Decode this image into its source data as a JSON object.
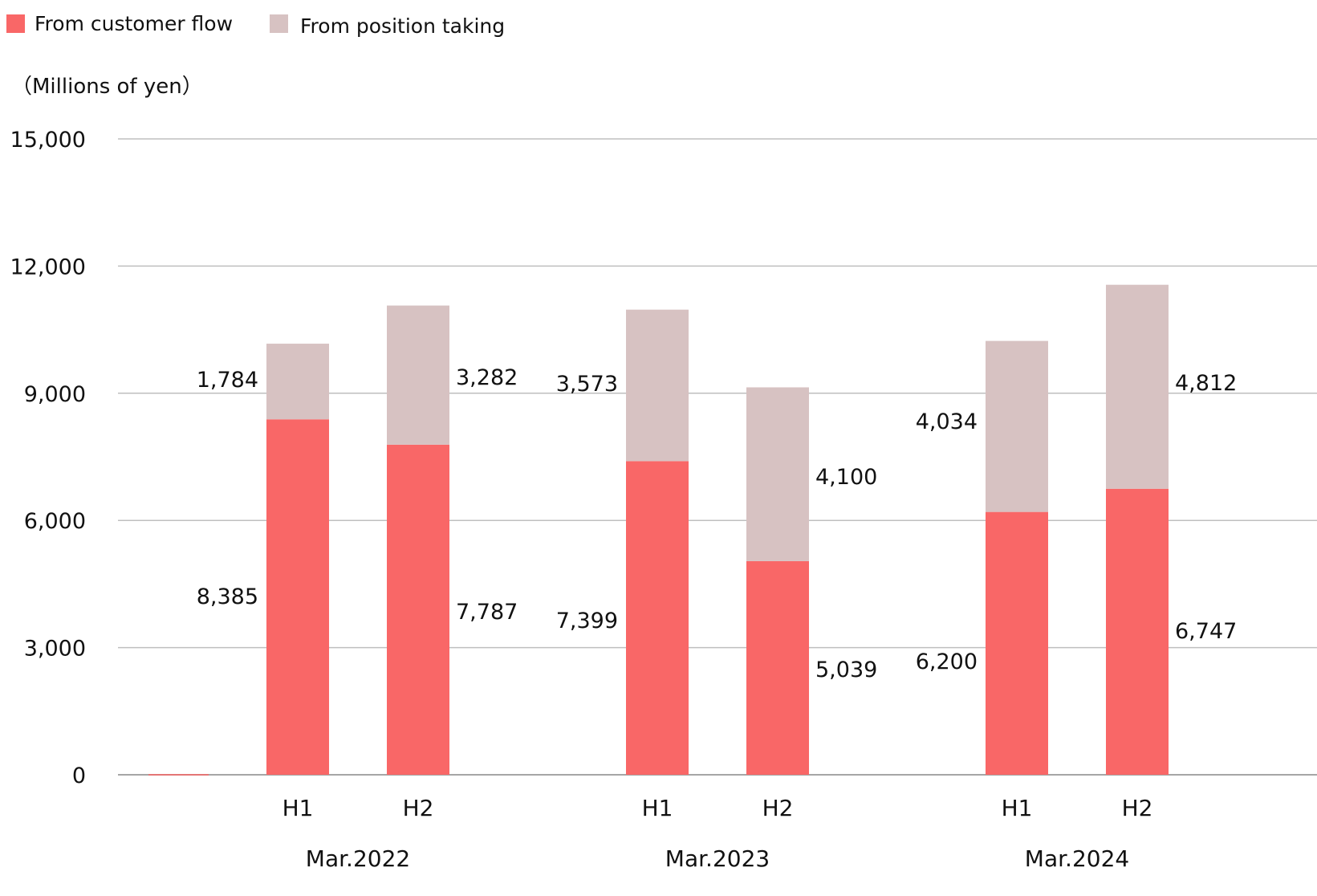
{
  "chart_data": {
    "type": "bar",
    "stacked": true,
    "ylabel": "（Millions of yen）",
    "ylim": [
      0,
      15000
    ],
    "yticks": [
      0,
      3000,
      6000,
      9000,
      12000,
      15000
    ],
    "ytick_labels": [
      "0",
      "3,000",
      "6,000",
      "9,000",
      "12,000",
      "15,000"
    ],
    "grid": true,
    "legend_placement": "top-left",
    "groups": [
      {
        "label": "Mar.2022",
        "categories": [
          "H1",
          "H2"
        ]
      },
      {
        "label": "Mar.2023",
        "categories": [
          "H1",
          "H2"
        ]
      },
      {
        "label": "Mar.2024",
        "categories": [
          "H1",
          "H2"
        ]
      }
    ],
    "series": [
      {
        "name": "From customer flow",
        "color": "#F96767",
        "values": [
          8385,
          7787,
          7399,
          5039,
          6200,
          6747
        ],
        "labels": [
          "8,385",
          "7,787",
          "7,399",
          "5,039",
          "6,200",
          "6,747"
        ]
      },
      {
        "name": "From position taking",
        "color": "#D7C2C2",
        "values": [
          1784,
          3282,
          3573,
          4100,
          4034,
          4812
        ],
        "labels": [
          "1,784",
          "3,282",
          "3,573",
          "4,100",
          "4,034",
          "4,812"
        ]
      }
    ]
  }
}
